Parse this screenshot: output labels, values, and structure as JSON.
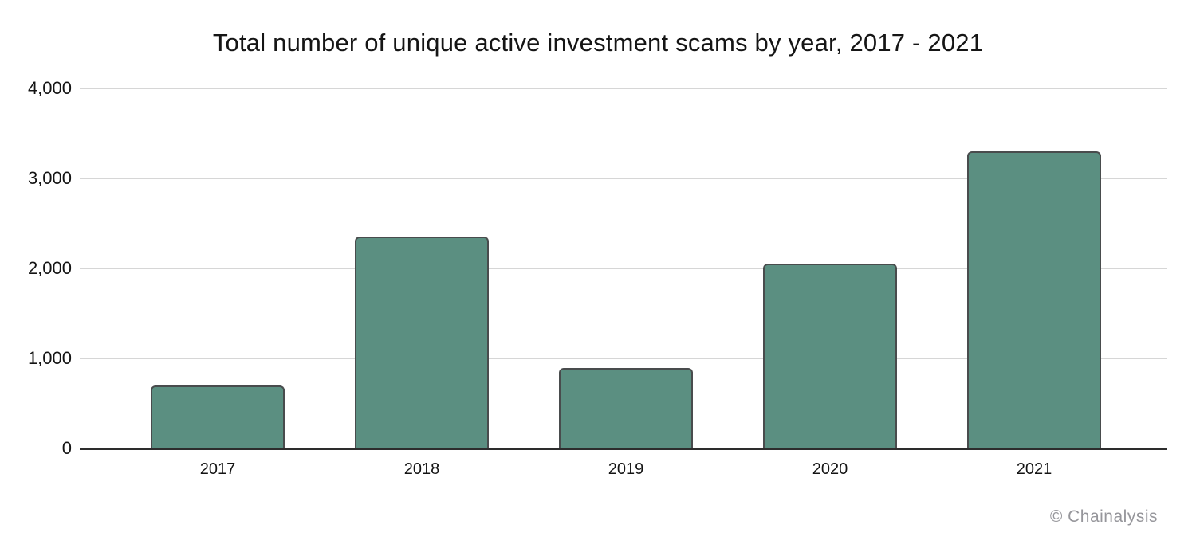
{
  "chart_data": {
    "type": "bar",
    "title": "Total number of unique active investment scams by year, 2017 - 2021",
    "categories": [
      "2017",
      "2018",
      "2019",
      "2020",
      "2021"
    ],
    "values": [
      700,
      2350,
      890,
      2050,
      3300
    ],
    "xlabel": "",
    "ylabel": "",
    "ylim": [
      0,
      4000
    ],
    "yticks": [
      0,
      1000,
      2000,
      3000,
      4000
    ],
    "ytick_labels": [
      "0",
      "1,000",
      "2,000",
      "3,000",
      "4,000"
    ],
    "grid": true,
    "legend": false,
    "colors": {
      "bar_fill": "#5b8f81",
      "bar_border": "#494c4d",
      "gridline": "#d6d6d6",
      "axis": "#2d2d2d",
      "title_text": "#151515",
      "tick_text": "#141414"
    }
  },
  "footer": {
    "credit": "© Chainalysis",
    "color": "#96969b"
  }
}
